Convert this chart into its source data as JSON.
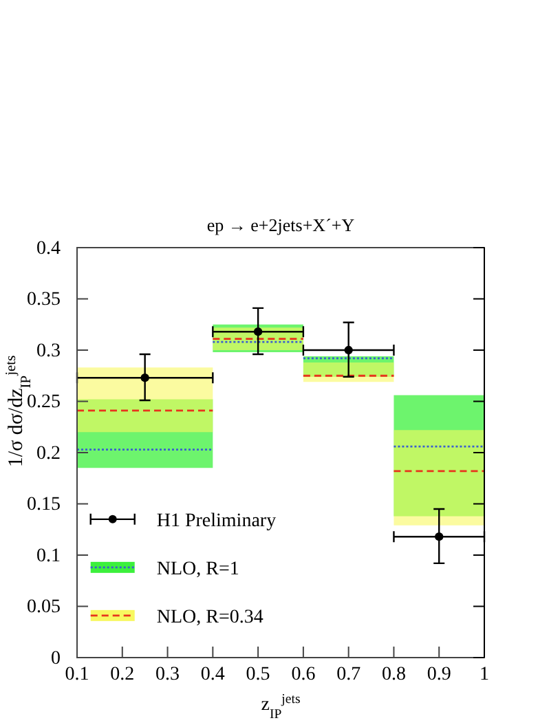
{
  "chart_data": {
    "type": "scatter",
    "title": "ep → e+2jets+X´+Y",
    "xlabel": "z$_{IP}$$^{jets}$",
    "ylabel": "1/σ dσ/dz$_{IP}$$^{jets}$",
    "xlim": [
      0.1,
      1
    ],
    "xticks": [
      0.1,
      0.2,
      0.3,
      0.4,
      0.5,
      0.6,
      0.7,
      0.8,
      0.9,
      1
    ],
    "ylim": [
      0,
      0.4
    ],
    "yticks": [
      0,
      0.05,
      0.1,
      0.15,
      0.2,
      0.25,
      0.3,
      0.35,
      0.4
    ],
    "grid": false,
    "legend": "bottom left",
    "series": [
      {
        "name": "NLO, R=1",
        "type": "step",
        "color": "#3a5fd0",
        "line_style": "dotted",
        "x": [
          0.1,
          0.4,
          0.6,
          0.8,
          1
        ],
        "values": [
          0.203,
          0.308,
          0.292,
          0.206,
          0.206
        ],
        "lower": [
          0.185,
          0.298,
          0.274,
          0.138,
          0.138
        ],
        "upper": [
          0.252,
          0.325,
          0.294,
          0.256,
          0.256
        ]
      },
      {
        "name": "NLO, R=0.34",
        "type": "step",
        "color": "#e8341c",
        "line_style": "dashed",
        "x": [
          0.1,
          0.4,
          0.6,
          0.8,
          1
        ],
        "values": [
          0.241,
          0.311,
          0.275,
          0.182,
          0.182
        ],
        "lower": [
          0.22,
          0.3,
          0.269,
          0.129,
          0.129
        ],
        "upper": [
          0.283,
          0.322,
          0.288,
          0.222,
          0.222
        ]
      },
      {
        "name": "H1 Preliminary",
        "type": "scatter",
        "color": "#000000",
        "marker": "circle",
        "x": [
          0.25,
          0.5,
          0.7,
          0.9
        ],
        "values": [
          0.273,
          0.318,
          0.3,
          0.118
        ],
        "errors": [
          [
            0.251,
            0.296
          ],
          [
            0.296,
            0.341
          ],
          [
            0.274,
            0.327
          ],
          [
            0.092,
            0.145
          ]
        ],
        "xerrors": [
          0.15,
          0.1,
          0.1,
          0.1
        ]
      }
    ]
  }
}
